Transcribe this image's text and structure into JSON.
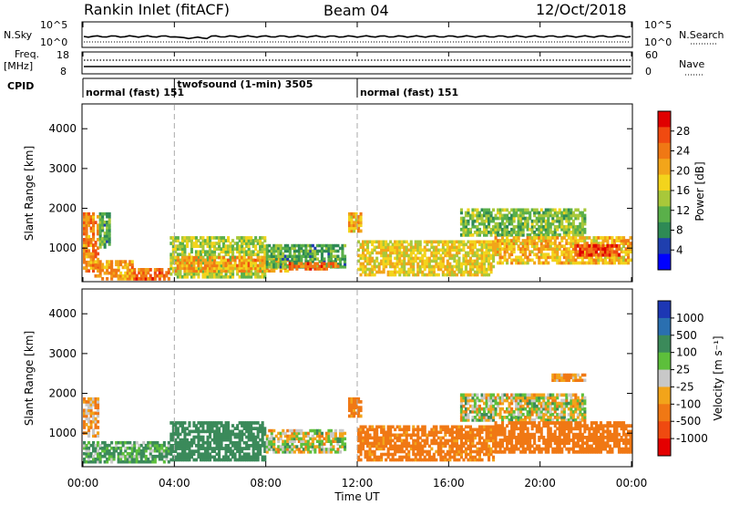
{
  "header": {
    "station": "Rankin Inlet (fitACF)",
    "beam": "Beam 04",
    "date": "12/Oct/2018"
  },
  "noise_panel": {
    "left_label": "N.Sky",
    "right_label": "N.Search",
    "left_ticks": [
      "10^5",
      "10^0"
    ],
    "right_ticks": [
      "10^5",
      "10^0"
    ]
  },
  "freq_panel": {
    "left_label_1": "Freq.",
    "left_label_2": "[MHz]",
    "left_ticks": [
      "18",
      "8"
    ],
    "right_label": "Nave",
    "right_ticks": [
      "60",
      "0"
    ]
  },
  "cpid": {
    "label": "CPID",
    "segments": [
      {
        "text": "normal (fast) 151",
        "start": 0,
        "end": 4
      },
      {
        "text": "twofsound (1-min) 3505",
        "start": 4,
        "end": 12
      },
      {
        "text": "normal (fast) 151",
        "start": 12,
        "end": 24
      }
    ]
  },
  "x_axis": {
    "label": "Time UT",
    "ticks": [
      "00:00",
      "04:00",
      "08:00",
      "12:00",
      "16:00",
      "20:00",
      "00:00"
    ]
  },
  "y_axis": {
    "label": "Slant Range [km]",
    "ticks": [
      "1000",
      "2000",
      "3000",
      "4000"
    ]
  },
  "power_colorbar": {
    "title": "Power [dB]",
    "ticks": [
      "4",
      "8",
      "12",
      "16",
      "20",
      "24",
      "28"
    ],
    "colors": [
      "#0000ff",
      "#1f3fae",
      "#2e8a55",
      "#5ab04a",
      "#a8c83a",
      "#f3d41c",
      "#f2a51a",
      "#f07814",
      "#f04a10",
      "#e00000"
    ]
  },
  "velocity_colorbar": {
    "title": "Velocity [m s⁻¹]",
    "ticks": [
      "1000",
      "500",
      "100",
      "25",
      "-25",
      "-100",
      "-500",
      "-1000"
    ],
    "colors": [
      "#1d37b4",
      "#2a6fb0",
      "#3b8a5a",
      "#5dbf3b",
      "#c8c8c8",
      "#f2a41a",
      "#f07814",
      "#ef4a10",
      "#e40000"
    ]
  },
  "chart_data": [
    {
      "type": "heatmap",
      "title": "Power [dB]",
      "xlabel": "Time UT",
      "ylabel": "Slant Range [km]",
      "xlim": [
        0,
        24
      ],
      "ylim": [
        180,
        4600
      ],
      "x_unit": "hours UT",
      "dashed_lines_x": [
        4,
        12
      ],
      "regions": [
        {
          "t0": 0.0,
          "t1": 0.7,
          "r0": 400,
          "r1": 1900,
          "value": 24
        },
        {
          "t0": 0.7,
          "t1": 1.2,
          "r0": 1000,
          "r1": 1900,
          "value": 10
        },
        {
          "t0": 0.5,
          "t1": 2.2,
          "r0": 200,
          "r1": 700,
          "value": 22
        },
        {
          "t0": 2.2,
          "t1": 3.8,
          "r0": 200,
          "r1": 500,
          "value": 26
        },
        {
          "t0": 3.8,
          "t1": 8.0,
          "r0": 250,
          "r1": 1300,
          "value": 14
        },
        {
          "t0": 4.0,
          "t1": 9.0,
          "r0": 400,
          "r1": 800,
          "value": 22
        },
        {
          "t0": 8.0,
          "t1": 11.5,
          "r0": 500,
          "r1": 1100,
          "value": 10
        },
        {
          "t0": 9.0,
          "t1": 11.2,
          "r0": 450,
          "r1": 650,
          "value": 26
        },
        {
          "t0": 11.6,
          "t1": 12.2,
          "r0": 1400,
          "r1": 1900,
          "value": 20
        },
        {
          "t0": 12.0,
          "t1": 18.0,
          "r0": 300,
          "r1": 1200,
          "value": 18
        },
        {
          "t0": 16.5,
          "t1": 22.0,
          "r0": 1300,
          "r1": 2000,
          "value": 12
        },
        {
          "t0": 18.0,
          "t1": 24.0,
          "r0": 600,
          "r1": 1300,
          "value": 20
        },
        {
          "t0": 21.5,
          "t1": 23.5,
          "r0": 800,
          "r1": 1100,
          "value": 28
        }
      ]
    },
    {
      "type": "heatmap",
      "title": "Velocity [m s⁻¹]",
      "xlabel": "Time UT",
      "ylabel": "Slant Range [km]",
      "xlim": [
        0,
        24
      ],
      "ylim": [
        180,
        4600
      ],
      "x_unit": "hours UT",
      "dashed_lines_x": [
        4,
        12
      ],
      "regions": [
        {
          "t0": 0.0,
          "t1": 0.7,
          "r0": 900,
          "r1": 1900,
          "value": -100
        },
        {
          "t0": 0.0,
          "t1": 3.8,
          "r0": 250,
          "r1": 800,
          "value": 100
        },
        {
          "t0": 3.8,
          "t1": 8.0,
          "r0": 300,
          "r1": 1300,
          "value": 300
        },
        {
          "t0": 8.0,
          "t1": 11.5,
          "r0": 500,
          "r1": 1100,
          "value": 0
        },
        {
          "t0": 11.6,
          "t1": 12.2,
          "r0": 1400,
          "r1": 1900,
          "value": -200
        },
        {
          "t0": 12.0,
          "t1": 18.0,
          "r0": 300,
          "r1": 1200,
          "value": -200
        },
        {
          "t0": 16.5,
          "t1": 22.0,
          "r0": 1300,
          "r1": 2000,
          "value": 0
        },
        {
          "t0": 18.0,
          "t1": 24.0,
          "r0": 500,
          "r1": 1300,
          "value": -300
        },
        {
          "t0": 20.5,
          "t1": 22.0,
          "r0": 2300,
          "r1": 2500,
          "value": -100
        }
      ]
    }
  ]
}
